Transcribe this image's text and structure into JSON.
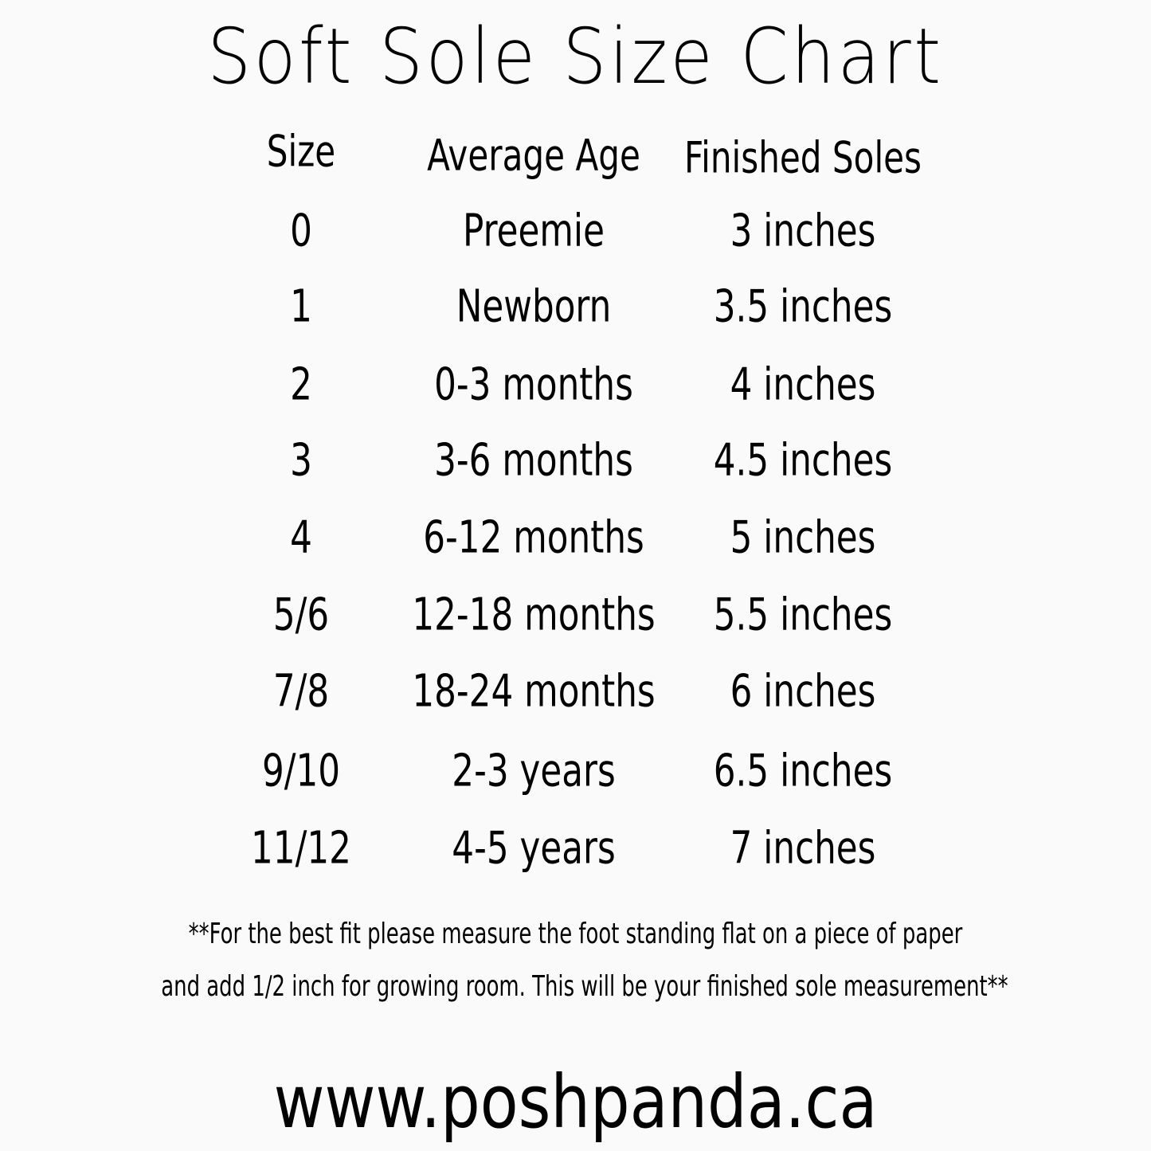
{
  "title": "Soft Sole Size Chart",
  "headers": [
    "Size",
    "Average Age",
    "Finished Soles"
  ],
  "rows": [
    [
      "0",
      "Preemie",
      "3 inches"
    ],
    [
      "1",
      "Newborn",
      "3.5 inches"
    ],
    [
      "2",
      "0-3 months",
      "4 inches"
    ],
    [
      "3",
      "3-6 months",
      "4.5 inches"
    ],
    [
      "4",
      "6-12 months",
      "5 inches"
    ],
    [
      "5/6",
      "12-18 months",
      "5.5 inches"
    ],
    [
      "7/8",
      "18-24 months",
      "6 inches"
    ],
    [
      "9/10",
      "2-3 years",
      "6.5 inches"
    ],
    [
      "11/12",
      "4-5 years",
      "7 inches"
    ]
  ],
  "note": [
    "**For the best fit please measure the foot standing flat on a piece of paper",
    "and add 1/2 inch for growing room. This will be your finished sole measurement**"
  ],
  "website": "www.poshpanda.ca"
}
